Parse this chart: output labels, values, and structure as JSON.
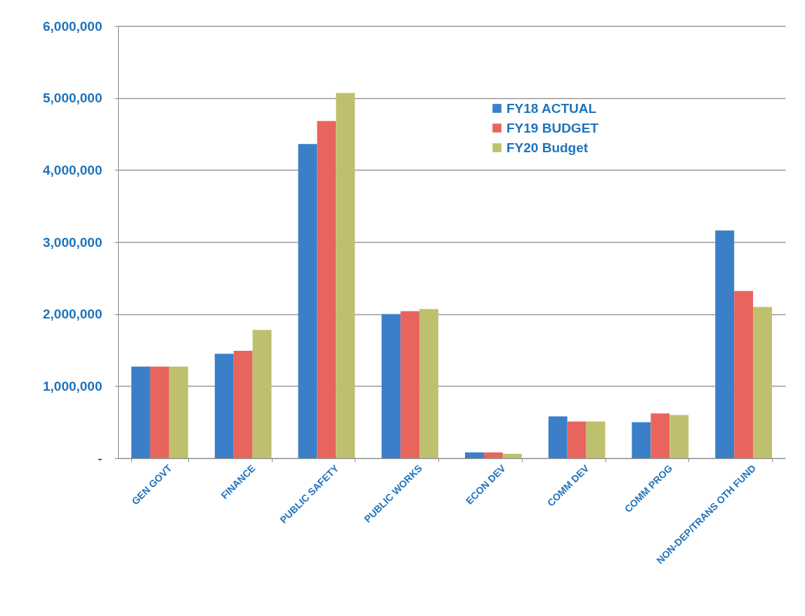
{
  "chart_data": {
    "type": "bar",
    "categories": [
      "GEN GOVT",
      "FINANCE",
      "PUBLIC SAFETY",
      "PUBLIC WORKS",
      "ECON DEV",
      "COMM DEV",
      "COMM PROG",
      "NON-DEP/TRANS OTH FUND"
    ],
    "series": [
      {
        "name": "FY18 ACTUAL",
        "color": "#3a7fc8",
        "values": [
          1270000,
          1450000,
          4360000,
          2000000,
          80000,
          580000,
          500000,
          3160000
        ]
      },
      {
        "name": "FY19 BUDGET",
        "color": "#e8655e",
        "values": [
          1270000,
          1490000,
          4680000,
          2040000,
          80000,
          510000,
          620000,
          2320000
        ]
      },
      {
        "name": "FY20 Budget",
        "color": "#bfc06e",
        "values": [
          1270000,
          1780000,
          5070000,
          2070000,
          60000,
          510000,
          600000,
          2100000
        ]
      }
    ],
    "ylim": [
      0,
      6000000
    ],
    "yticks": [
      {
        "value": 0,
        "label": "-"
      },
      {
        "value": 1000000,
        "label": "1,000,000"
      },
      {
        "value": 2000000,
        "label": "2,000,000"
      },
      {
        "value": 3000000,
        "label": "3,000,000"
      },
      {
        "value": 4000000,
        "label": "4,000,000"
      },
      {
        "value": 5000000,
        "label": "5,000,000"
      },
      {
        "value": 6000000,
        "label": "6,000,000"
      }
    ],
    "grid": "y",
    "legend": "top right"
  }
}
